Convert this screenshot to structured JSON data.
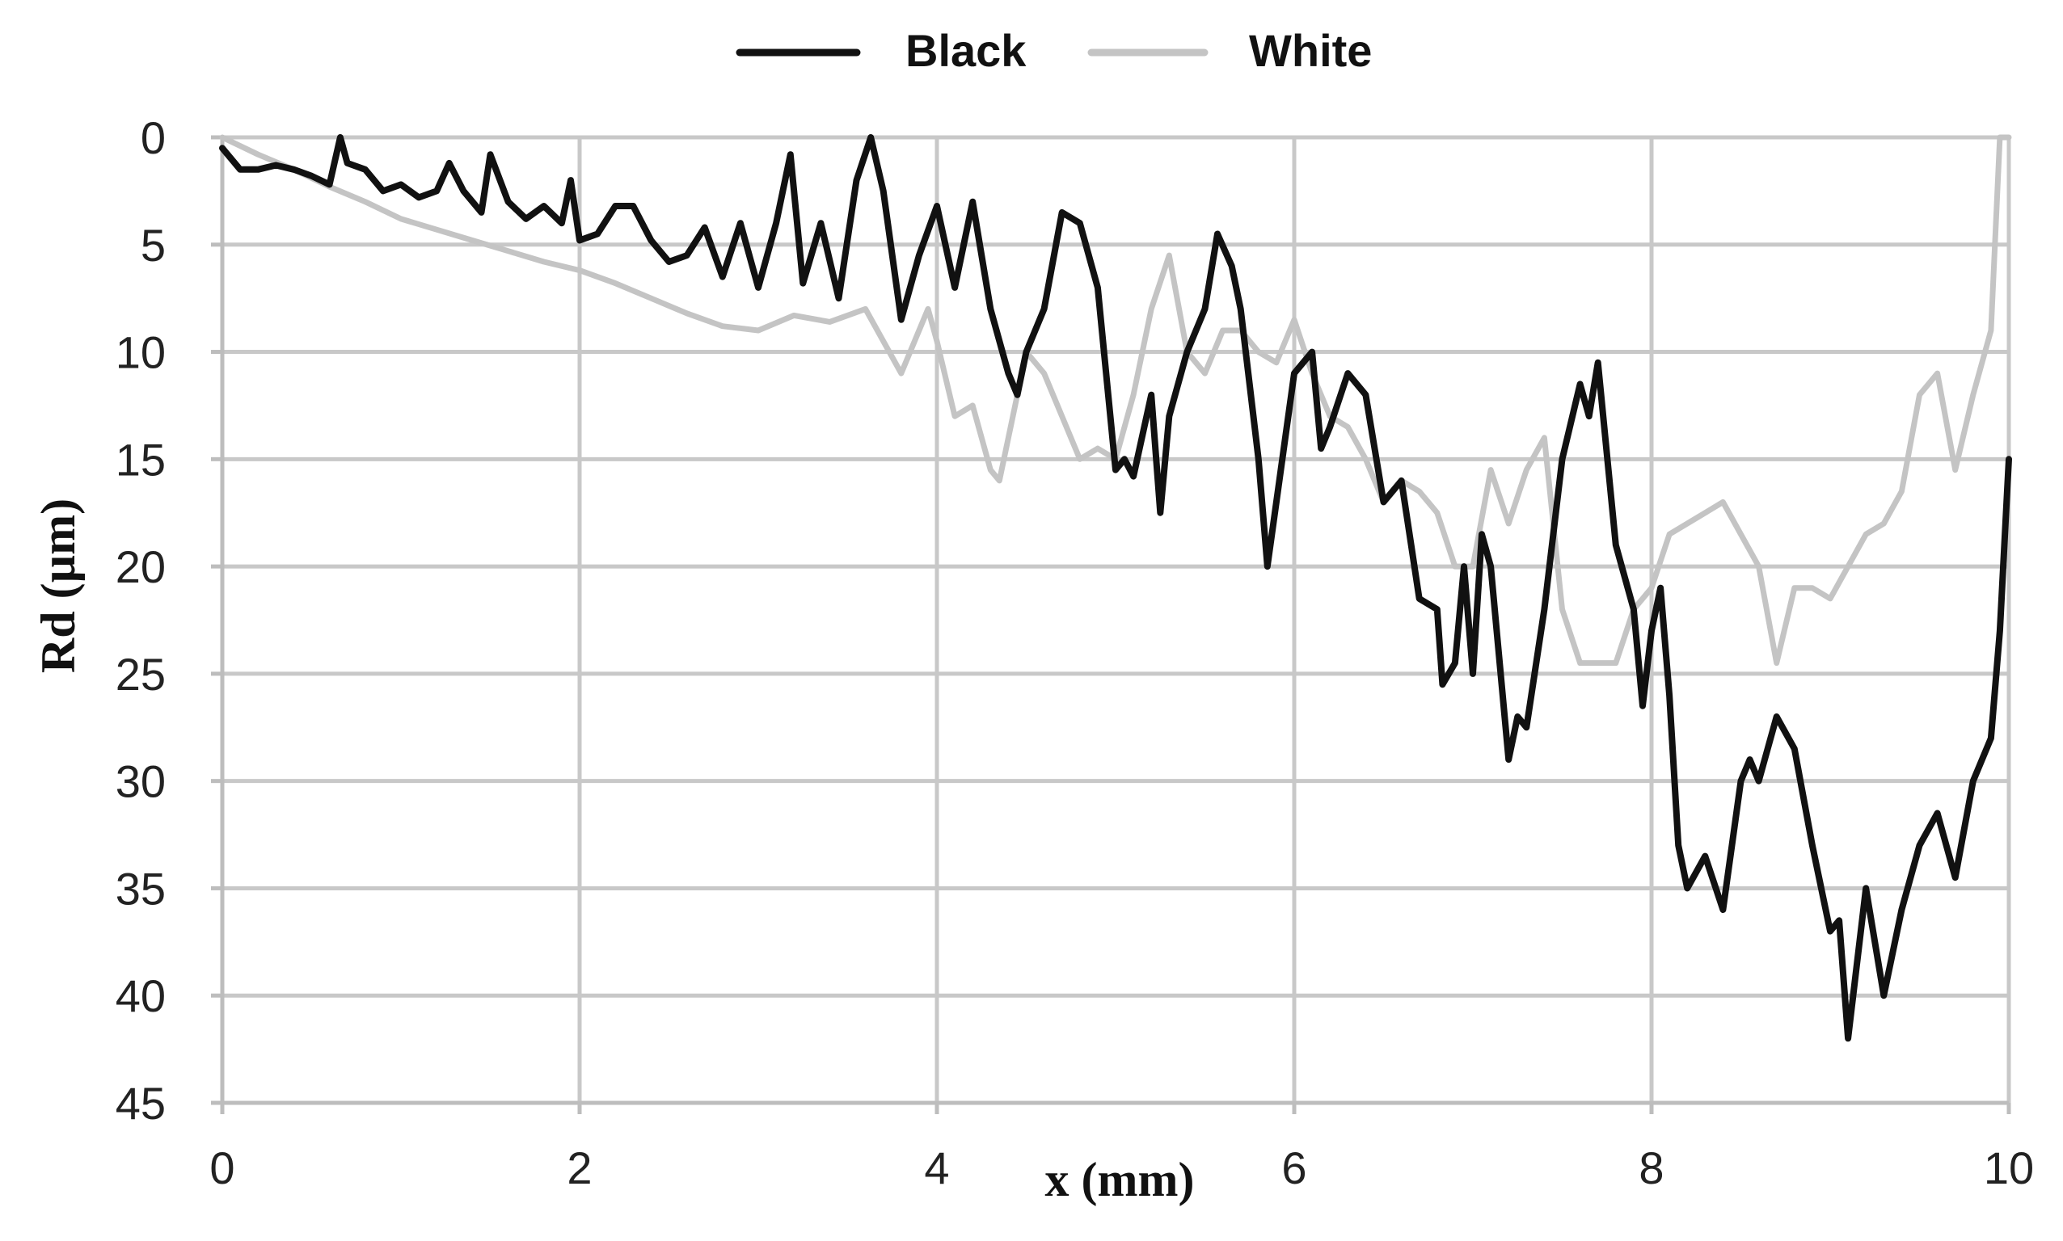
{
  "chart_data": {
    "type": "line",
    "xlabel": "x (mm)",
    "ylabel": "Rd (µm)",
    "xlim": [
      0,
      10
    ],
    "ylim": [
      0,
      45
    ],
    "y_inverted": true,
    "x_ticks": [
      "0",
      "2",
      "4",
      "6",
      "8",
      "10"
    ],
    "y_ticks": [
      "0",
      "5",
      "10",
      "15",
      "20",
      "25",
      "30",
      "35",
      "40",
      "45"
    ],
    "grid": true,
    "legend_position": "top-center",
    "series": [
      {
        "name": "Black",
        "color": "#111111",
        "x": [
          0,
          0.1,
          0.2,
          0.3,
          0.4,
          0.5,
          0.6,
          0.66,
          0.7,
          0.8,
          0.9,
          1.0,
          1.1,
          1.2,
          1.27,
          1.35,
          1.45,
          1.5,
          1.6,
          1.7,
          1.8,
          1.9,
          1.95,
          2.0,
          2.1,
          2.2,
          2.3,
          2.4,
          2.5,
          2.6,
          2.7,
          2.8,
          2.9,
          3.0,
          3.1,
          3.18,
          3.25,
          3.35,
          3.45,
          3.55,
          3.63,
          3.7,
          3.8,
          3.9,
          4.0,
          4.1,
          4.2,
          4.3,
          4.4,
          4.45,
          4.5,
          4.6,
          4.7,
          4.8,
          4.9,
          5.0,
          5.05,
          5.1,
          5.2,
          5.25,
          5.3,
          5.4,
          5.5,
          5.57,
          5.65,
          5.7,
          5.8,
          5.85,
          5.9,
          6.0,
          6.1,
          6.15,
          6.2,
          6.3,
          6.4,
          6.5,
          6.6,
          6.7,
          6.8,
          6.83,
          6.9,
          6.95,
          7.0,
          7.05,
          7.1,
          7.2,
          7.25,
          7.3,
          7.4,
          7.5,
          7.6,
          7.65,
          7.7,
          7.8,
          7.9,
          7.95,
          8.0,
          8.05,
          8.1,
          8.15,
          8.2,
          8.3,
          8.4,
          8.5,
          8.55,
          8.6,
          8.7,
          8.8,
          8.9,
          9.0,
          9.05,
          9.1,
          9.2,
          9.3,
          9.4,
          9.5,
          9.6,
          9.7,
          9.8,
          9.9,
          9.95,
          10.0
        ],
        "y": [
          0.5,
          1.5,
          1.5,
          1.3,
          1.5,
          1.8,
          2.2,
          0,
          1.2,
          1.5,
          2.5,
          2.2,
          2.8,
          2.5,
          1.2,
          2.5,
          3.5,
          0.8,
          3.0,
          3.8,
          3.2,
          4.0,
          2.0,
          4.8,
          4.5,
          3.2,
          3.2,
          4.8,
          5.8,
          5.5,
          4.2,
          6.5,
          4.0,
          7.0,
          4.0,
          0.8,
          6.8,
          4.0,
          7.5,
          2.0,
          0,
          2.5,
          8.5,
          5.5,
          3.2,
          7.0,
          3.0,
          8.0,
          11.0,
          12.0,
          10.0,
          8.0,
          3.5,
          4.0,
          7.0,
          15.5,
          15.0,
          15.8,
          12.0,
          17.5,
          13.0,
          10.0,
          8.0,
          4.5,
          6.0,
          8.0,
          15.0,
          20.0,
          17.0,
          11.0,
          10.0,
          14.5,
          13.5,
          11.0,
          12.0,
          17.0,
          16.0,
          21.5,
          22.0,
          25.5,
          24.5,
          20.0,
          25.0,
          18.5,
          20.0,
          29.0,
          27.0,
          27.5,
          22.0,
          15.0,
          11.5,
          13.0,
          10.5,
          19.0,
          22.0,
          26.5,
          23.0,
          21.0,
          26.0,
          33.0,
          35.0,
          33.5,
          36.0,
          30.0,
          29.0,
          30.0,
          27.0,
          28.5,
          33.0,
          37.0,
          36.5,
          42.0,
          35.0,
          40.0,
          36.0,
          33.0,
          31.5,
          34.5,
          30.0,
          28.0,
          23.0,
          15.0
        ]
      },
      {
        "name": "White",
        "color": "#c4c4c4",
        "x": [
          0,
          0.2,
          0.4,
          0.6,
          0.8,
          1.0,
          1.2,
          1.4,
          1.6,
          1.8,
          2.0,
          2.2,
          2.4,
          2.6,
          2.8,
          3.0,
          3.2,
          3.4,
          3.6,
          3.8,
          3.95,
          4.0,
          4.1,
          4.2,
          4.3,
          4.35,
          4.4,
          4.45,
          4.5,
          4.6,
          4.7,
          4.8,
          4.9,
          5.0,
          5.1,
          5.2,
          5.3,
          5.4,
          5.5,
          5.6,
          5.7,
          5.8,
          5.9,
          6.0,
          6.1,
          6.2,
          6.3,
          6.4,
          6.5,
          6.6,
          6.7,
          6.8,
          6.9,
          7.0,
          7.1,
          7.2,
          7.3,
          7.4,
          7.5,
          7.6,
          7.7,
          7.8,
          7.9,
          8.0,
          8.1,
          8.2,
          8.3,
          8.4,
          8.5,
          8.6,
          8.7,
          8.8,
          8.9,
          9.0,
          9.1,
          9.2,
          9.3,
          9.4,
          9.5,
          9.6,
          9.7,
          9.8,
          9.9,
          9.95,
          10.0
        ],
        "y": [
          0,
          0.8,
          1.5,
          2.3,
          3.0,
          3.8,
          4.3,
          4.8,
          5.3,
          5.8,
          6.2,
          6.8,
          7.5,
          8.2,
          8.8,
          9.0,
          8.3,
          8.6,
          8.0,
          11.0,
          8.0,
          9.5,
          13.0,
          12.5,
          15.5,
          16.0,
          14.0,
          12.0,
          10.0,
          11.0,
          13.0,
          15.0,
          14.5,
          15.0,
          12.0,
          8.0,
          5.5,
          10.0,
          11.0,
          9.0,
          9.0,
          10.0,
          10.5,
          8.5,
          11.0,
          13.0,
          13.5,
          15.0,
          17.0,
          16.0,
          16.5,
          17.5,
          20.0,
          20.0,
          15.5,
          18.0,
          15.5,
          14.0,
          22.0,
          24.5,
          24.5,
          24.5,
          22.0,
          21.0,
          18.5,
          18.0,
          17.5,
          17.0,
          18.5,
          20.0,
          24.5,
          21.0,
          21.0,
          21.5,
          20.0,
          18.5,
          18.0,
          16.5,
          12.0,
          11.0,
          15.5,
          12.0,
          9.0,
          0,
          0
        ]
      }
    ]
  }
}
